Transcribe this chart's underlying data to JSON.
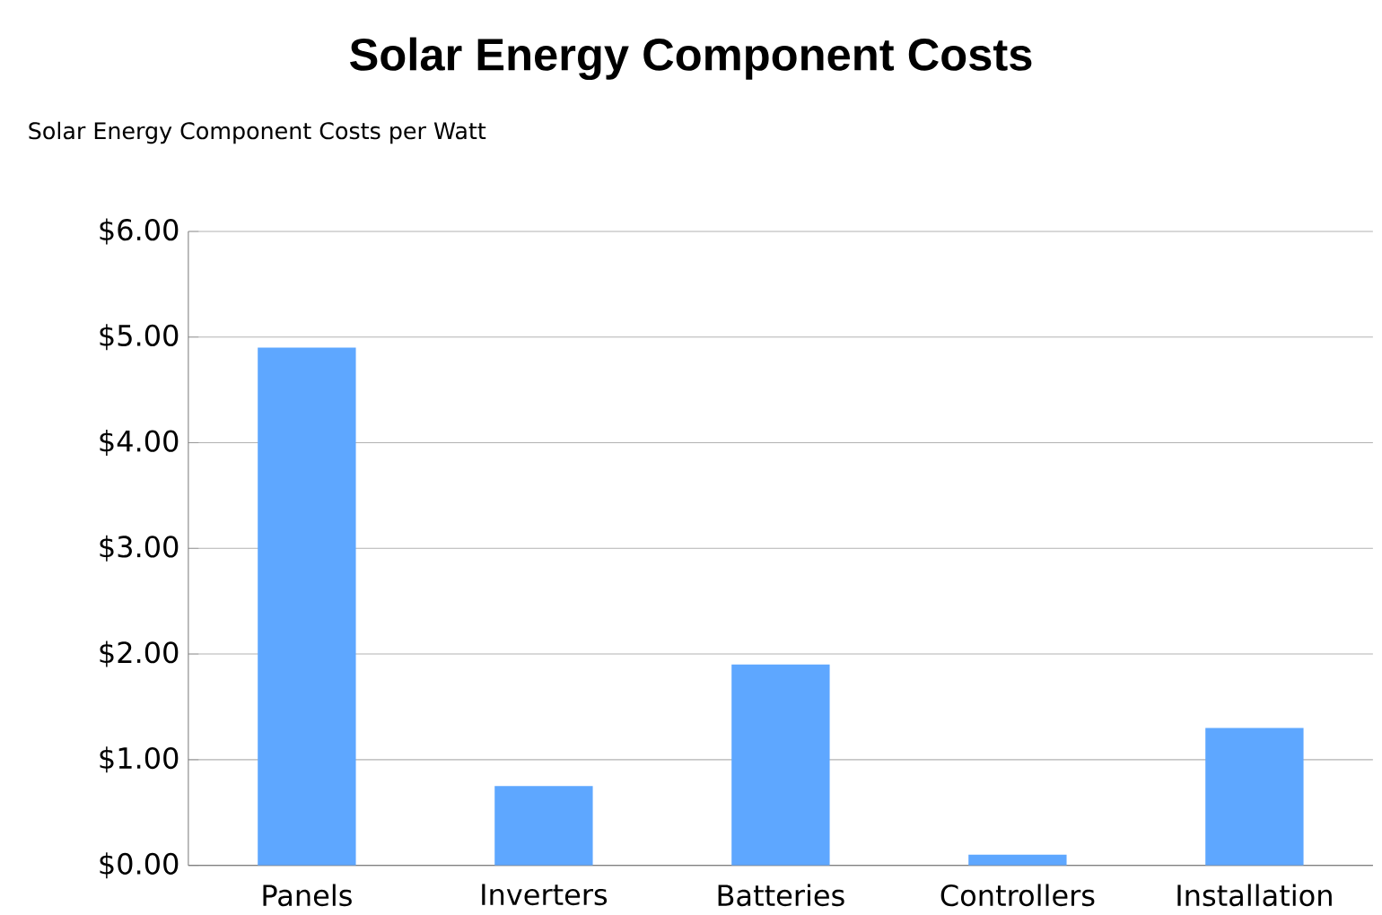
{
  "chart_data": {
    "type": "bar",
    "title": "Solar Energy Component Costs",
    "ylabel": "Solar Energy Component Costs per Watt",
    "categories": [
      "Panels",
      "Inverters",
      "Batteries",
      "Controllers",
      "Installation"
    ],
    "values": [
      4.9,
      0.75,
      1.9,
      0.1,
      1.3
    ],
    "color": "#5ea7ff",
    "ylim": [
      0,
      6
    ],
    "yticks": [
      {
        "value": 0,
        "label": "$0.00"
      },
      {
        "value": 1,
        "label": "$1.00"
      },
      {
        "value": 2,
        "label": "$2.00"
      },
      {
        "value": 3,
        "label": "$3.00"
      },
      {
        "value": 4,
        "label": "$4.00"
      },
      {
        "value": 5,
        "label": "$5.00"
      },
      {
        "value": 6,
        "label": "$6.00"
      }
    ],
    "grid": "y"
  }
}
